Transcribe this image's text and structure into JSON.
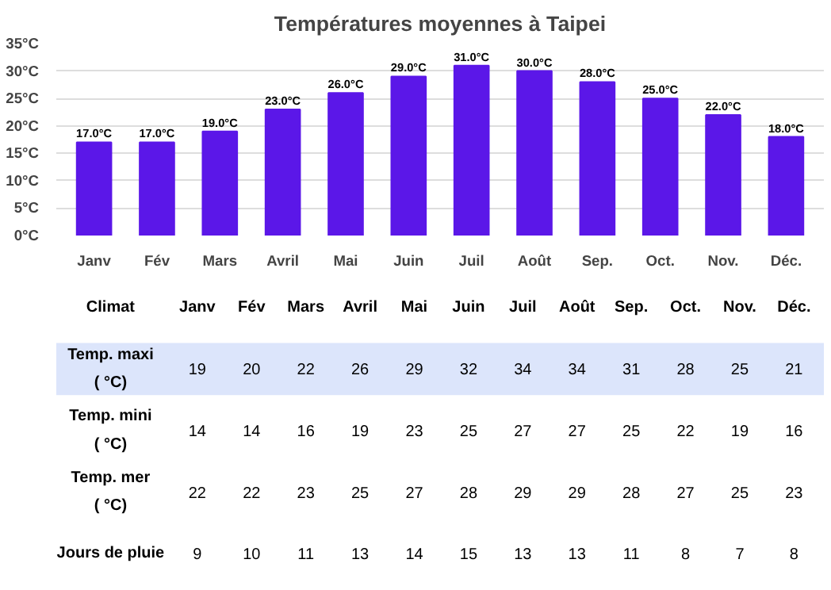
{
  "chart_data": [
    {
      "type": "bar",
      "title": "Températures moyennes à Taipei",
      "categories": [
        "Janv",
        "Fév",
        "Mars",
        "Avril",
        "Mai",
        "Juin",
        "Juil",
        "Août",
        "Sep.",
        "Oct.",
        "Nov.",
        "Déc."
      ],
      "values": [
        17,
        17,
        19,
        23,
        26,
        29,
        31,
        30,
        28,
        25,
        22,
        18
      ],
      "color": "#5b17e8",
      "value_labels": [
        "17.0°C",
        "17.0°C",
        "19.0°C",
        "23.0°C",
        "26.0°C",
        "29.0°C",
        "31.0°C",
        "30.0°C",
        "28.0°C",
        "25.0°C",
        "22.0°C",
        "18.0°C"
      ],
      "ylim": [
        0,
        35
      ],
      "yticks": [
        {
          "value": 0,
          "label": "0°C"
        },
        {
          "value": 5,
          "label": "5°C"
        },
        {
          "value": 10,
          "label": "10°C"
        },
        {
          "value": 15,
          "label": "15°C"
        },
        {
          "value": 20,
          "label": "20°C"
        },
        {
          "value": 25,
          "label": "25°C"
        },
        {
          "value": 30,
          "label": "30°C"
        },
        {
          "value": 35,
          "label": "35°C"
        }
      ],
      "grid": "y"
    },
    {
      "type": "heatmap",
      "annotations": [
        "Climat"
      ],
      "categories": [
        "Janv",
        "Fév",
        "Mars",
        "Avril",
        "Mai",
        "Juin",
        "Juil",
        "Août",
        "Sep.",
        "Oct.",
        "Nov.",
        "Déc."
      ],
      "y_categories": [
        "Temp. maxi ( °C)",
        "Temp. mini ( °C)",
        "Temp. mer ( °C)",
        "Jours de pluie"
      ],
      "cells": [
        [
          19,
          20,
          22,
          26,
          29,
          32,
          34,
          34,
          31,
          28,
          25,
          21
        ],
        [
          14,
          14,
          16,
          19,
          23,
          25,
          27,
          27,
          25,
          22,
          19,
          16
        ],
        [
          22,
          22,
          23,
          25,
          27,
          28,
          29,
          29,
          28,
          27,
          25,
          23
        ],
        [
          9,
          10,
          11,
          13,
          14,
          15,
          13,
          13,
          11,
          8,
          7,
          8
        ]
      ],
      "colors": [
        "#dce5fb",
        null,
        null,
        null
      ],
      "data_labels": true
    }
  ]
}
